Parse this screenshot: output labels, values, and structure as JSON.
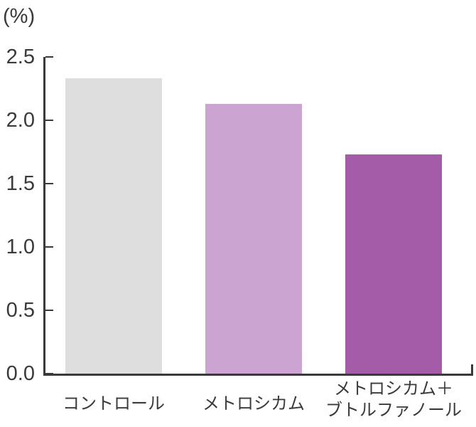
{
  "chart_data": {
    "type": "bar",
    "title": "",
    "ylabel": "(%)",
    "xlabel": "",
    "categories": [
      "コントロール",
      "メトロシカム",
      "メトロシカム＋ ブトルファノール"
    ],
    "category_lines": [
      [
        "コントロール"
      ],
      [
        "メトロシカム"
      ],
      [
        "メトロシカム＋",
        "ブトルファノール"
      ]
    ],
    "values": [
      2.33,
      2.13,
      1.73
    ],
    "bar_colors": [
      "#dedede",
      "#cba4d2",
      "#a45ca8"
    ],
    "ylim": [
      0,
      2.5
    ],
    "yticks": [
      "0.0",
      "0.5",
      "1.0",
      "1.5",
      "2.0",
      "2.5"
    ],
    "grid": false,
    "legend": null,
    "axis_color": "#3a3a3a"
  }
}
